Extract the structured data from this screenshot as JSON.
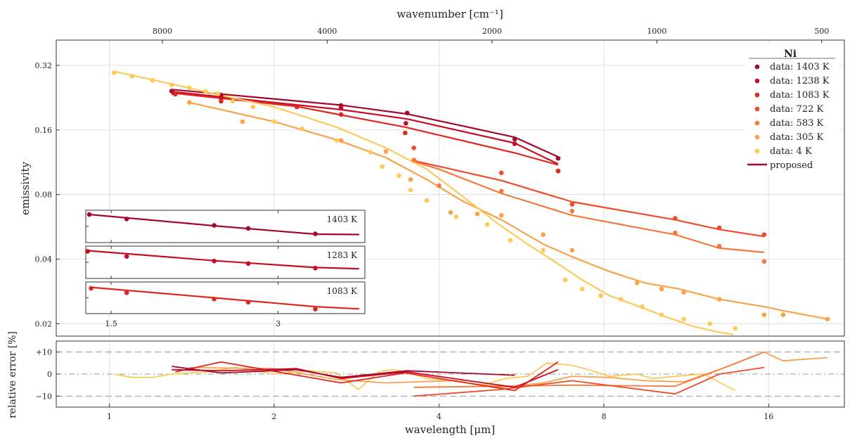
{
  "chart_data": {
    "type": "scatter",
    "title": "",
    "top_axis": {
      "label": "wavenumber [cm⁻¹]",
      "ticks": [
        8000,
        4000,
        2000,
        1000,
        500
      ],
      "tick_labels": [
        "8000",
        "4000",
        "2000",
        "1000",
        "500"
      ]
    },
    "xlabel": "wavelength [μm]",
    "xscale": "log",
    "xlim": [
      0.8,
      22
    ],
    "xticks": [
      1,
      2,
      4,
      8,
      16
    ],
    "xtick_labels": [
      "1",
      "2",
      "4",
      "8",
      "16"
    ],
    "ylabel": "emissivity",
    "yscale": "log",
    "ylim": [
      0.0175,
      0.42
    ],
    "yticks": [
      0.02,
      0.04,
      0.08,
      0.16,
      0.32
    ],
    "ytick_labels": [
      "0.02",
      "0.04",
      "0.08",
      "0.16",
      "0.32"
    ],
    "grid": true,
    "legend": {
      "title": "Ni",
      "position": "top-right",
      "entries": [
        {
          "label": "data: 1403 K",
          "color": "#a5072a",
          "marker": "dot"
        },
        {
          "label": "data: 1238 K",
          "color": "#c70d24",
          "marker": "dot"
        },
        {
          "label": "data: 1083 K",
          "color": "#e0271f",
          "marker": "dot"
        },
        {
          "label": "data: 722 K",
          "color": "#ee4b2a",
          "marker": "dot"
        },
        {
          "label": "data: 583 K",
          "color": "#f5793b",
          "marker": "dot"
        },
        {
          "label": "data: 305 K",
          "color": "#f9a24a",
          "marker": "dot"
        },
        {
          "label": "data: 4 K",
          "color": "#fdc95a",
          "marker": "dot"
        },
        {
          "label": "proposed",
          "color": "#a5072a",
          "marker": "line"
        }
      ]
    },
    "series": [
      {
        "name": "data: 1403 K",
        "color": "#a5072a",
        "points": [
          [
            1.3,
            0.243
          ],
          [
            1.6,
            0.233
          ],
          [
            2.65,
            0.208
          ],
          [
            3.5,
            0.192
          ],
          [
            5.5,
            0.145
          ],
          [
            6.6,
            0.118
          ]
        ],
        "fit": [
          [
            1.3,
            0.247
          ],
          [
            2.65,
            0.209
          ],
          [
            3.5,
            0.19
          ],
          [
            5.5,
            0.148
          ],
          [
            6.6,
            0.12
          ]
        ]
      },
      {
        "name": "data: 1238 K",
        "color": "#c70d24",
        "points": [
          [
            1.31,
            0.238
          ],
          [
            1.6,
            0.225
          ],
          [
            2.65,
            0.202
          ],
          [
            3.48,
            0.172
          ],
          [
            5.5,
            0.138
          ],
          [
            6.6,
            0.103
          ]
        ],
        "fit": [
          [
            1.31,
            0.241
          ],
          [
            2.65,
            0.199
          ],
          [
            3.5,
            0.18
          ],
          [
            5.5,
            0.139
          ],
          [
            6.6,
            0.111
          ]
        ]
      },
      {
        "name": "data: 1083 K",
        "color": "#e0271f",
        "points": [
          [
            1.32,
            0.235
          ],
          [
            1.6,
            0.218
          ],
          [
            2.2,
            0.205
          ],
          [
            2.65,
            0.189
          ],
          [
            3.47,
            0.155
          ],
          [
            6.6,
            0.103
          ]
        ],
        "fit": [
          [
            1.32,
            0.237
          ],
          [
            2.2,
            0.206
          ],
          [
            2.65,
            0.188
          ],
          [
            3.47,
            0.165
          ],
          [
            5.5,
            0.125
          ],
          [
            6.6,
            0.11
          ]
        ]
      },
      {
        "name": "data: 722 K",
        "color": "#ee4b2a",
        "points": [
          [
            3.6,
            0.132
          ],
          [
            5.2,
            0.101
          ],
          [
            7,
            0.072
          ],
          [
            10.8,
            0.062
          ],
          [
            13,
            0.056
          ],
          [
            15.7,
            0.052
          ]
        ],
        "fit": [
          [
            3.6,
            0.115
          ],
          [
            5.2,
            0.093
          ],
          [
            7,
            0.074
          ],
          [
            10.8,
            0.061
          ],
          [
            13,
            0.055
          ],
          [
            15.7,
            0.051
          ]
        ]
      },
      {
        "name": "data: 583 K",
        "color": "#f5793b",
        "points": [
          [
            3.6,
            0.116
          ],
          [
            4.0,
            0.088
          ],
          [
            5.2,
            0.083
          ],
          [
            7,
            0.067
          ],
          [
            10.8,
            0.053
          ],
          [
            13,
            0.046
          ],
          [
            15.7,
            0.039
          ]
        ],
        "fit": [
          [
            3.6,
            0.114
          ],
          [
            4.0,
            0.105
          ],
          [
            5.2,
            0.081
          ],
          [
            7,
            0.064
          ],
          [
            10.8,
            0.052
          ],
          [
            13,
            0.045
          ],
          [
            15.7,
            0.043
          ]
        ]
      },
      {
        "name": "data: 305 K",
        "color": "#f9a24a",
        "points": [
          [
            1.4,
            0.215
          ],
          [
            1.75,
            0.175
          ],
          [
            2.65,
            0.143
          ],
          [
            3.2,
            0.127
          ],
          [
            3.55,
            0.094
          ],
          [
            4.2,
            0.066
          ],
          [
            4.7,
            0.065
          ],
          [
            5.2,
            0.064
          ],
          [
            6.2,
            0.052
          ],
          [
            7,
            0.044
          ],
          [
            9.2,
            0.031
          ],
          [
            10.2,
            0.029
          ],
          [
            11.2,
            0.028
          ],
          [
            13,
            0.026
          ],
          [
            15.7,
            0.022
          ],
          [
            17,
            0.022
          ],
          [
            20.5,
            0.021
          ]
        ],
        "fit": [
          [
            1.4,
            0.215
          ],
          [
            2.0,
            0.175
          ],
          [
            2.6,
            0.144
          ],
          [
            3.2,
            0.119
          ],
          [
            3.8,
            0.094
          ],
          [
            4.4,
            0.075
          ],
          [
            5.2,
            0.061
          ],
          [
            6.2,
            0.047
          ],
          [
            7,
            0.041
          ],
          [
            8.2,
            0.035
          ],
          [
            9.5,
            0.031
          ],
          [
            11,
            0.029
          ],
          [
            13,
            0.026
          ],
          [
            15.7,
            0.024
          ],
          [
            17,
            0.023
          ],
          [
            20.5,
            0.021
          ]
        ]
      },
      {
        "name": "data: 4 K",
        "color": "#fdc95a",
        "points": [
          [
            1.02,
            0.296
          ],
          [
            1.1,
            0.285
          ],
          [
            1.2,
            0.273
          ],
          [
            1.3,
            0.26
          ],
          [
            1.4,
            0.252
          ],
          [
            1.5,
            0.242
          ],
          [
            1.58,
            0.236
          ],
          [
            1.68,
            0.218
          ],
          [
            1.83,
            0.205
          ],
          [
            2.0,
            0.175
          ],
          [
            2.25,
            0.162
          ],
          [
            2.6,
            0.143
          ],
          [
            3.0,
            0.126
          ],
          [
            3.15,
            0.108
          ],
          [
            3.38,
            0.098
          ],
          [
            3.55,
            0.084
          ],
          [
            3.8,
            0.075
          ],
          [
            4.3,
            0.063
          ],
          [
            4.9,
            0.058
          ],
          [
            5.4,
            0.049
          ],
          [
            6.2,
            0.044
          ],
          [
            6.8,
            0.032
          ],
          [
            7.3,
            0.029
          ],
          [
            7.9,
            0.027
          ],
          [
            8.6,
            0.026
          ],
          [
            9.4,
            0.024
          ],
          [
            10.2,
            0.022
          ],
          [
            11.2,
            0.021
          ],
          [
            12.5,
            0.02
          ],
          [
            13.9,
            0.019
          ]
        ],
        "fit": [
          [
            1.02,
            0.3
          ],
          [
            1.3,
            0.262
          ],
          [
            1.6,
            0.232
          ],
          [
            2.0,
            0.205
          ],
          [
            2.6,
            0.165
          ],
          [
            3.2,
            0.132
          ],
          [
            3.8,
            0.105
          ],
          [
            4.4,
            0.079
          ],
          [
            5.1,
            0.059
          ],
          [
            5.8,
            0.047
          ],
          [
            6.5,
            0.039
          ],
          [
            7.3,
            0.032
          ],
          [
            8.2,
            0.027
          ],
          [
            9.3,
            0.024
          ],
          [
            10.4,
            0.0215
          ],
          [
            11.6,
            0.0195
          ],
          [
            12.9,
            0.0183
          ],
          [
            13.8,
            0.0178
          ]
        ]
      }
    ],
    "insets": [
      {
        "label": "1403 K",
        "color": "#a5072a",
        "points": [
          [
            1.37,
            0.87
          ],
          [
            1.6,
            0.73
          ],
          [
            2.3,
            0.53
          ],
          [
            2.65,
            0.44
          ],
          [
            3.5,
            0.27
          ]
        ],
        "fit": [
          [
            1.37,
            0.87
          ],
          [
            2.3,
            0.52
          ],
          [
            3.5,
            0.26
          ],
          [
            4.2,
            0.25
          ]
        ]
      },
      {
        "label": "1283 K",
        "color": "#c70d24",
        "points": [
          [
            1.36,
            0.84
          ],
          [
            1.6,
            0.68
          ],
          [
            2.3,
            0.54
          ],
          [
            2.65,
            0.46
          ],
          [
            3.5,
            0.32
          ]
        ],
        "fit": [
          [
            1.36,
            0.86
          ],
          [
            2.3,
            0.55
          ],
          [
            3.5,
            0.34
          ],
          [
            4.2,
            0.3
          ]
        ]
      },
      {
        "label": "1083 K",
        "color": "#e0271f",
        "points": [
          [
            1.38,
            0.8
          ],
          [
            1.6,
            0.66
          ],
          [
            2.3,
            0.46
          ],
          [
            2.65,
            0.36
          ],
          [
            3.5,
            0.14
          ]
        ],
        "fit": [
          [
            1.38,
            0.83
          ],
          [
            2.3,
            0.5
          ],
          [
            3.5,
            0.22
          ],
          [
            4.2,
            0.15
          ]
        ]
      }
    ],
    "inset_xticks": [
      1.5,
      3
    ],
    "inset_xtick_labels": [
      "1.5",
      "3"
    ],
    "residuals": {
      "ylabel": "relative error [%]",
      "ylim": [
        -15,
        15
      ],
      "yticks": [
        10,
        0,
        -10
      ],
      "ytick_labels": [
        "+10",
        "0",
        "−10"
      ],
      "series": [
        {
          "name": "1403 K",
          "color": "#a5072a",
          "values": [
            [
              1.3,
              3.5
            ],
            [
              1.6,
              0.5
            ],
            [
              2.2,
              2
            ],
            [
              2.65,
              -1.5
            ],
            [
              3.5,
              1.5
            ],
            [
              5.5,
              -0.5
            ]
          ]
        },
        {
          "name": "1238 K",
          "color": "#c70d24",
          "values": [
            [
              1.3,
              2
            ],
            [
              1.6,
              1.5
            ],
            [
              2.2,
              2.5
            ],
            [
              2.65,
              -2
            ],
            [
              3.5,
              1
            ],
            [
              5.5,
              -6
            ],
            [
              6.6,
              2
            ]
          ]
        },
        {
          "name": "1083 K",
          "color": "#e0271f",
          "values": [
            [
              1.32,
              1
            ],
            [
              1.6,
              5.5
            ],
            [
              2.2,
              -0.5
            ],
            [
              2.65,
              -4
            ],
            [
              3.47,
              0.5
            ],
            [
              5.5,
              -7.5
            ],
            [
              6.6,
              5.5
            ]
          ]
        },
        {
          "name": "722 K",
          "color": "#ee4b2a",
          "values": [
            [
              3.6,
              -10
            ],
            [
              5.2,
              -7
            ],
            [
              7,
              -3
            ],
            [
              10.8,
              -9
            ],
            [
              13,
              0
            ],
            [
              15.7,
              3
            ]
          ]
        },
        {
          "name": "583 K",
          "color": "#f5793b",
          "values": [
            [
              3.6,
              -6
            ],
            [
              5.2,
              -5.5
            ],
            [
              7,
              -5
            ],
            [
              10.8,
              -5.5
            ],
            [
              13,
              2
            ],
            [
              15.7,
              10
            ]
          ]
        },
        {
          "name": "305 K",
          "color": "#f9a24a",
          "values": [
            [
              1.4,
              3
            ],
            [
              2.0,
              2.5
            ],
            [
              2.6,
              -2.5
            ],
            [
              3.2,
              -4
            ],
            [
              4.2,
              -3
            ],
            [
              5.2,
              -6
            ],
            [
              6.2,
              -4
            ],
            [
              7,
              -1
            ],
            [
              8.2,
              -1.5
            ],
            [
              9.5,
              -3
            ],
            [
              11.2,
              -3.5
            ],
            [
              13,
              2
            ],
            [
              15.7,
              10
            ],
            [
              17,
              6
            ],
            [
              20.5,
              7.5
            ]
          ]
        },
        {
          "name": "4 K",
          "color": "#fdc95a",
          "values": [
            [
              1.02,
              0
            ],
            [
              1.1,
              -1.5
            ],
            [
              1.2,
              -1.5
            ],
            [
              1.3,
              0
            ],
            [
              1.5,
              1
            ],
            [
              1.7,
              3
            ],
            [
              2.0,
              0
            ],
            [
              2.3,
              1.5
            ],
            [
              2.6,
              0.5
            ],
            [
              2.85,
              -7
            ],
            [
              3.1,
              1
            ],
            [
              3.3,
              2
            ],
            [
              3.5,
              1
            ],
            [
              3.8,
              -2
            ],
            [
              4.3,
              -3
            ],
            [
              4.8,
              -5
            ],
            [
              5.3,
              -2
            ],
            [
              5.8,
              -1
            ],
            [
              6.3,
              5
            ],
            [
              7,
              4
            ],
            [
              7.5,
              2
            ],
            [
              8.2,
              -1
            ],
            [
              9.2,
              0
            ],
            [
              9.8,
              -2
            ],
            [
              10.8,
              -1
            ],
            [
              12.2,
              0
            ],
            [
              13.9,
              -7.5
            ]
          ]
        }
      ]
    }
  }
}
